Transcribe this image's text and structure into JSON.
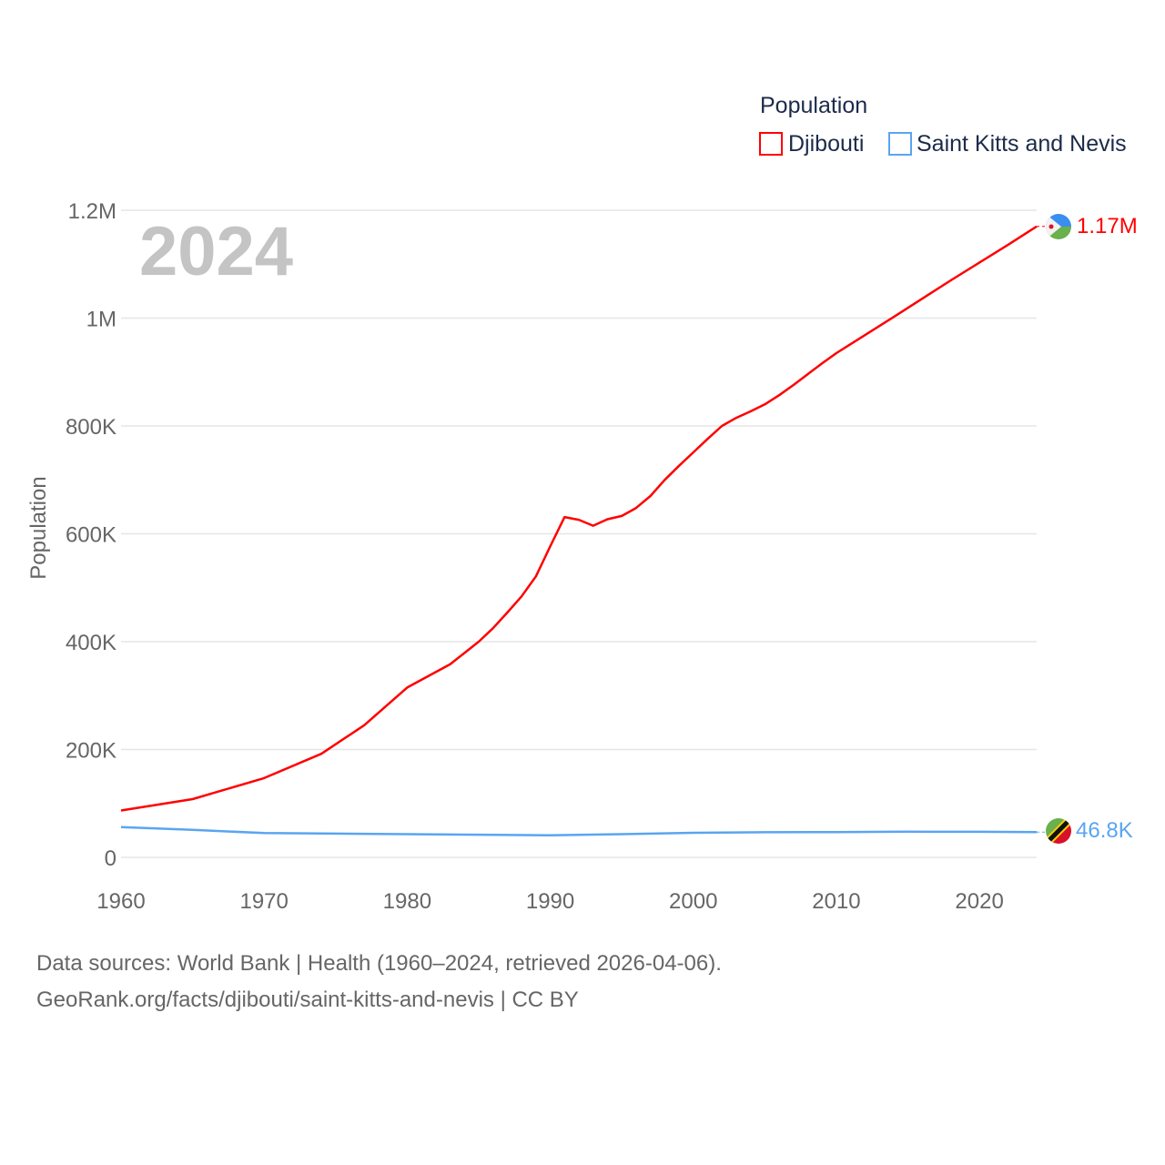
{
  "chart_data": {
    "type": "line",
    "year_watermark": "2024",
    "ylabel": "Population",
    "legend": {
      "title": "Population",
      "placement": "top-right"
    },
    "xlim": [
      1960,
      2024
    ],
    "ylim": [
      0,
      1200000
    ],
    "grid": true,
    "yticks": [
      {
        "v": 0,
        "label": "0"
      },
      {
        "v": 200000,
        "label": "200K"
      },
      {
        "v": 400000,
        "label": "400K"
      },
      {
        "v": 600000,
        "label": "600K"
      },
      {
        "v": 800000,
        "label": "800K"
      },
      {
        "v": 1000000,
        "label": "1M"
      },
      {
        "v": 1200000,
        "label": "1.2M"
      }
    ],
    "xticks": [
      {
        "v": 1960,
        "label": "1960"
      },
      {
        "v": 1970,
        "label": "1970"
      },
      {
        "v": 1980,
        "label": "1980"
      },
      {
        "v": 1990,
        "label": "1990"
      },
      {
        "v": 2000,
        "label": "2000"
      },
      {
        "v": 2010,
        "label": "2010"
      },
      {
        "v": 2020,
        "label": "2020"
      }
    ],
    "series": [
      {
        "name": "Djibouti",
        "color": "#ff0000",
        "end_label": "1.17M",
        "flag": "djibouti-flag",
        "x": [
          1960,
          1965,
          1970,
          1974,
          1977,
          1980,
          1983,
          1985,
          1986,
          1987,
          1988,
          1989,
          1990,
          1991,
          1992,
          1993,
          1994,
          1995,
          1996,
          1997,
          1998,
          1999,
          2000,
          2001,
          2002,
          2003,
          2004,
          2005,
          2006,
          2007,
          2008,
          2009,
          2010,
          2014,
          2018,
          2022,
          2024
        ],
        "y": [
          87000,
          108000,
          147000,
          192000,
          245000,
          315000,
          358000,
          400000,
          425000,
          454000,
          484000,
          521000,
          577000,
          631000,
          626000,
          615000,
          627000,
          633000,
          648000,
          670000,
          700000,
          726000,
          751000,
          776000,
          800000,
          815000,
          827000,
          840000,
          857000,
          876000,
          896000,
          916000,
          935000,
          1002000,
          1070000,
          1136000,
          1170000
        ]
      },
      {
        "name": "Saint Kitts and Nevis",
        "color": "#5aa5f0",
        "end_label": "46.8K",
        "flag": "saint-kitts-and-nevis-flag",
        "x": [
          1960,
          1965,
          1970,
          1975,
          1980,
          1985,
          1990,
          1995,
          2000,
          2005,
          2010,
          2015,
          2020,
          2024
        ],
        "y": [
          56000,
          51000,
          45000,
          44000,
          43000,
          42000,
          41000,
          43000,
          45500,
          46500,
          47000,
          47600,
          47500,
          46800
        ]
      }
    ]
  },
  "footer": {
    "line1": "Data sources: World Bank | Health (1960–2024, retrieved 2026-04-06).",
    "line2": "GeoRank.org/facts/djibouti/saint-kitts-and-nevis | CC BY"
  }
}
